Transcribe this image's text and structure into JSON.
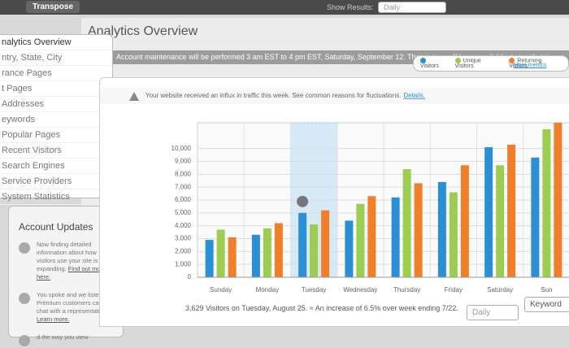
{
  "toolbar": {
    "button": "Transpose",
    "show_results": "Show Results:",
    "select": "Daily"
  },
  "page_title": "Analytics Overview",
  "notice": "Account maintenance will be performed 3 am EST to 4 pm EST, Saturday, September 12. The system will be unavailable during that time.",
  "sidebar": {
    "items": [
      "nalytics Overview",
      "ntry, State, City",
      "rance Pages",
      "t Pages",
      "Addresses",
      "eywords",
      "Popular Pages",
      "Recent Visitors",
      "Search Engines",
      "Service Providers",
      "System Statistics"
    ]
  },
  "updates": {
    "title": "Account Updates",
    "items": [
      {
        "text": "Now finding detailed information about how visitors use your site is expanding.",
        "link": "Find out more here."
      },
      {
        "text": "You spoke and we listened. Premium customers can live chat with a representative.",
        "link": "Learn more."
      },
      {
        "text": "d the way you view"
      }
    ]
  },
  "alert": {
    "text": "Your website received an influx in traffic this week. See common reasons for fluctuations.",
    "link": "Details."
  },
  "more_metrics": "More metrics",
  "chart_data": {
    "type": "bar",
    "categories": [
      "Sunday",
      "Monday",
      "Tuesday",
      "Wednesday",
      "Thursday",
      "Friday",
      "Saturday",
      "Sun"
    ],
    "series": [
      {
        "name": "Visitors",
        "color": "#2b8fd6",
        "values": [
          2900,
          3300,
          5000,
          4400,
          6200,
          7400,
          10100,
          9300
        ]
      },
      {
        "name": "Unique Visitors",
        "color": "#9ccc52",
        "values": [
          3700,
          3800,
          4100,
          5700,
          8400,
          6600,
          8700,
          11500
        ]
      },
      {
        "name": "Returning Visitors",
        "color": "#f07f2a",
        "values": [
          3100,
          4200,
          5200,
          6300,
          7300,
          8700,
          10300,
          12000
        ]
      }
    ],
    "ylim": [
      0,
      12000
    ],
    "yticks": [
      0,
      {
        "value": 1000,
        "label": "1,000"
      },
      {
        "value": 2000,
        "label": "2,000"
      },
      {
        "value": 3000,
        "label": "3,000"
      },
      {
        "value": 4000,
        "label": "4,000"
      },
      {
        "value": 5000,
        "label": "5,000"
      },
      {
        "value": 6000,
        "label": "6,000"
      },
      {
        "value": 7000,
        "label": "7,000"
      },
      {
        "value": 8000,
        "label": "8,000"
      },
      {
        "value": 9000,
        "label": "9,000"
      },
      {
        "value": 10000,
        "label": "10,000"
      }
    ],
    "grid": true
  },
  "summary": "3,629 Visitors on Tuesday, August 25. ≈ An increase of 6.5% over week ending 7/22.",
  "filters": {
    "select": "Daily",
    "button": "Keyword"
  }
}
